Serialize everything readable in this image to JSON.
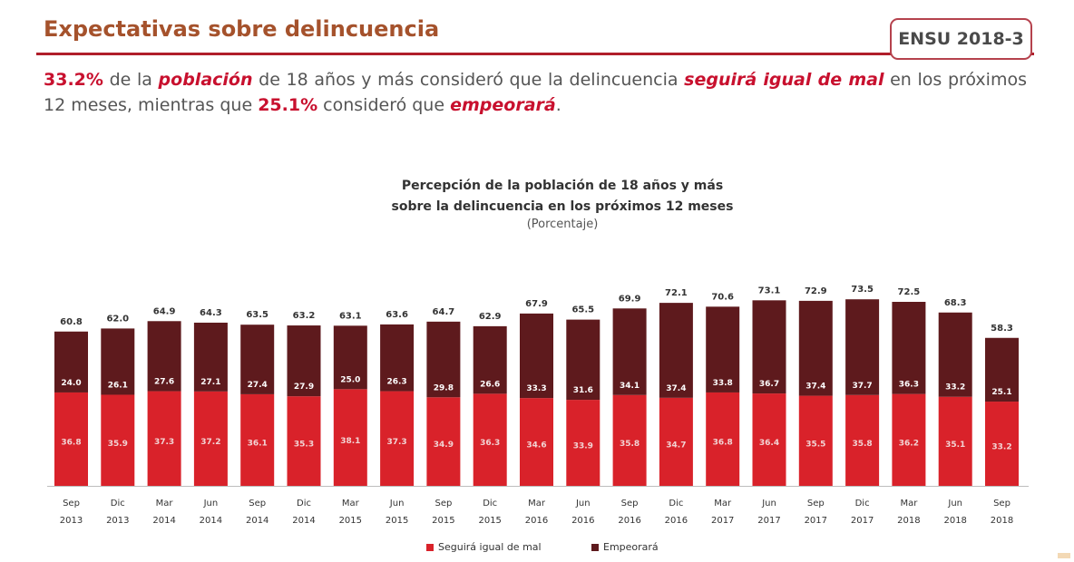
{
  "header": {
    "title": "Expectativas sobre delincuencia",
    "badge": "ENSU 2018-3"
  },
  "summary": {
    "pct_igual": "33.2%",
    "t1": " de la ",
    "poblacion": "población",
    "t2": " de 18 años y más consideró que la delincuencia ",
    "seguira": "seguirá igual de mal",
    "t3": " en los próximos 12 meses, mientras que ",
    "pct_empeora": "25.1%",
    "t4": " consideró que ",
    "empeorara": "empeorará",
    "t5": "."
  },
  "chart_data": {
    "type": "bar",
    "stacked": true,
    "title_line1": "Percepción de la población de 18 años y más",
    "title_line2": "sobre la delincuencia en los próximos 12 meses",
    "subtitle": "(Porcentaje)",
    "categories": [
      [
        "Sep",
        "2013"
      ],
      [
        "Dic",
        "2013"
      ],
      [
        "Mar",
        "2014"
      ],
      [
        "Jun",
        "2014"
      ],
      [
        "Sep",
        "2014"
      ],
      [
        "Dic",
        "2014"
      ],
      [
        "Mar",
        "2015"
      ],
      [
        "Jun",
        "2015"
      ],
      [
        "Sep",
        "2015"
      ],
      [
        "Dic",
        "2015"
      ],
      [
        "Mar",
        "2016"
      ],
      [
        "Jun",
        "2016"
      ],
      [
        "Sep",
        "2016"
      ],
      [
        "Dic",
        "2016"
      ],
      [
        "Mar",
        "2017"
      ],
      [
        "Jun",
        "2017"
      ],
      [
        "Sep",
        "2017"
      ],
      [
        "Dic",
        "2017"
      ],
      [
        "Mar",
        "2018"
      ],
      [
        "Jun",
        "2018"
      ],
      [
        "Sep",
        "2018"
      ]
    ],
    "totals": [
      60.8,
      62.0,
      64.9,
      64.3,
      63.5,
      63.2,
      63.1,
      63.6,
      64.7,
      62.9,
      67.9,
      65.5,
      69.9,
      72.1,
      70.6,
      73.1,
      72.9,
      73.5,
      72.5,
      68.3,
      58.3
    ],
    "series": [
      {
        "name": "Seguirá igual de mal",
        "color": "#d9222a",
        "values": [
          36.8,
          35.9,
          37.3,
          37.2,
          36.1,
          35.3,
          38.1,
          37.3,
          34.9,
          36.3,
          34.6,
          33.9,
          35.8,
          34.7,
          36.8,
          36.4,
          35.5,
          35.8,
          36.2,
          35.1,
          33.2
        ]
      },
      {
        "name": "Empeorará",
        "color": "#5e1a1d",
        "values": [
          24.0,
          26.1,
          27.6,
          27.1,
          27.4,
          27.9,
          25.0,
          26.3,
          29.8,
          26.6,
          33.3,
          31.6,
          34.1,
          37.4,
          33.8,
          36.7,
          37.4,
          37.7,
          36.3,
          33.2,
          25.1
        ]
      }
    ],
    "ylim": [
      0,
      100
    ],
    "legend_position": "bottom"
  }
}
